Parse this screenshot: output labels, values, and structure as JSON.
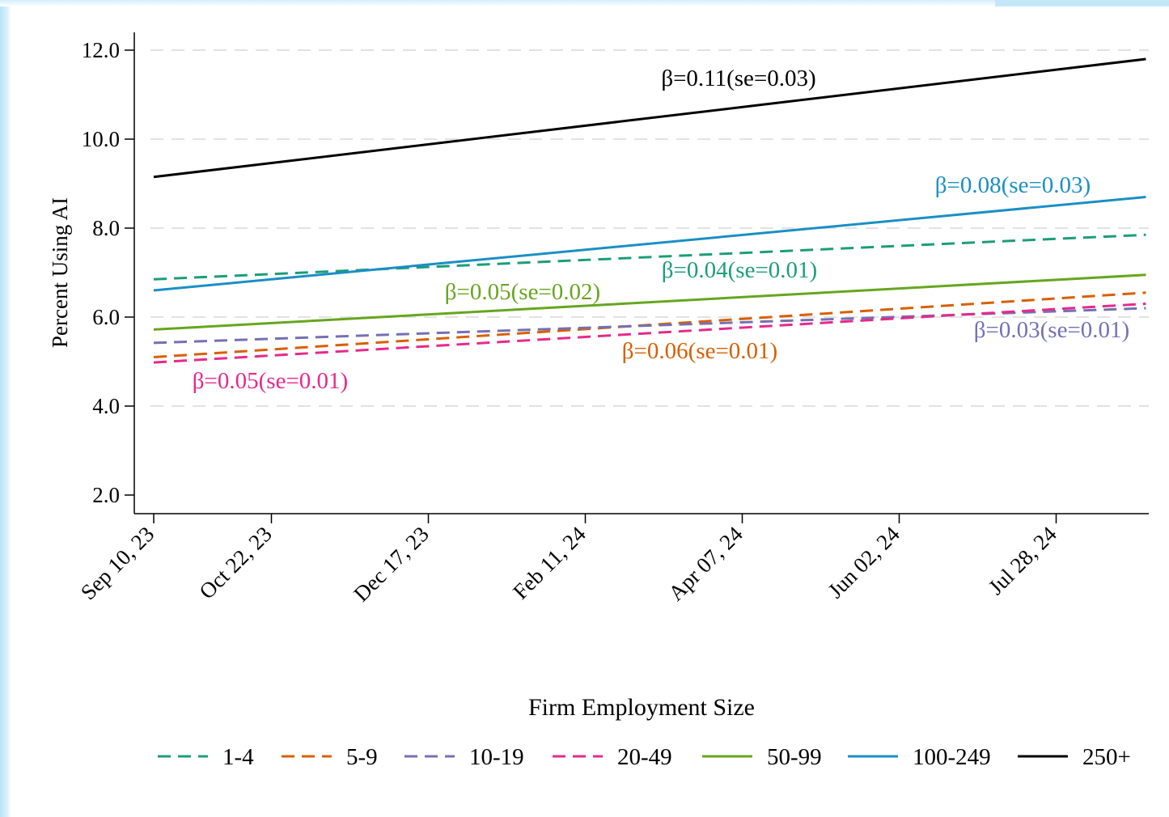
{
  "chart_data": {
    "type": "line",
    "title": "",
    "xlabel": "",
    "ylabel": "Percent Using AI",
    "legend_title": "Firm Employment Size",
    "legend_position": "bottom",
    "grid": "horizontal dashed",
    "ylim": [
      2.0,
      12.0
    ],
    "yticks": [
      2.0,
      4.0,
      6.0,
      8.0,
      10.0,
      12.0
    ],
    "ytick_labels": [
      "2.0",
      "4.0",
      "6.0",
      "8.0",
      "10.0",
      "12.0"
    ],
    "xlim": [
      "2023-09-10",
      "2024-08-29"
    ],
    "xticks": [
      "2023-09-10",
      "2023-10-22",
      "2023-12-17",
      "2024-02-11",
      "2024-04-07",
      "2024-06-02",
      "2024-07-28"
    ],
    "xtick_labels": [
      "Sep 10, 23",
      "Oct 22, 23",
      "Dec 17, 23",
      "Feb 11, 24",
      "Apr 07, 24",
      "Jun 02, 24",
      "Jul 28, 24"
    ],
    "x": [
      "2023-09-10",
      "2024-08-29"
    ],
    "series": [
      {
        "name": "1-4",
        "values": [
          6.85,
          7.85
        ],
        "color": "#1b9e77",
        "style": "dashed",
        "annotation": "β=0.04(se=0.01)"
      },
      {
        "name": "5-9",
        "values": [
          5.1,
          6.55
        ],
        "color": "#d95f02",
        "style": "dashed",
        "annotation": "β=0.06(se=0.01)"
      },
      {
        "name": "10-19",
        "values": [
          5.42,
          6.2
        ],
        "color": "#7570b3",
        "style": "dashed",
        "annotation": "β=0.03(se=0.01)"
      },
      {
        "name": "20-49",
        "values": [
          4.98,
          6.3
        ],
        "color": "#e7298a",
        "style": "dashed",
        "annotation": "β=0.05(se=0.01)"
      },
      {
        "name": "50-99",
        "values": [
          5.72,
          6.95
        ],
        "color": "#66a61e",
        "style": "solid",
        "annotation": "β=0.05(se=0.02)"
      },
      {
        "name": "100-249",
        "values": [
          6.6,
          8.7
        ],
        "color": "#1a8fc4",
        "style": "solid",
        "annotation": "β=0.08(se=0.03)"
      },
      {
        "name": "250+",
        "values": [
          9.15,
          11.8
        ],
        "color": "#000000",
        "style": "solid",
        "annotation": "β=0.11(se=0.03)"
      }
    ]
  }
}
